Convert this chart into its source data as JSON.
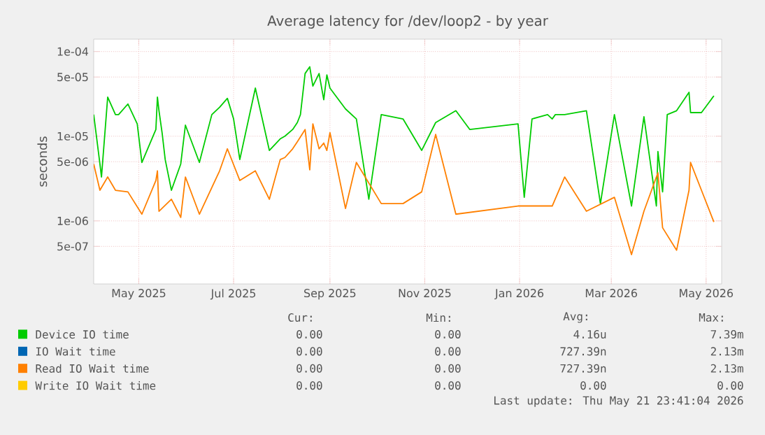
{
  "chart_data": {
    "type": "line",
    "title": "Average latency for /dev/loop2 - by year",
    "ylabel": "seconds",
    "x": [
      "2025-04-02",
      "2025-04-06",
      "2025-04-07",
      "2025-04-11",
      "2025-04-16",
      "2025-04-18",
      "2025-04-24",
      "2025-04-30",
      "2025-05-03",
      "2025-05-12",
      "2025-05-13",
      "2025-05-14",
      "2025-05-16",
      "2025-05-18",
      "2025-05-22",
      "2025-05-28",
      "2025-05-31",
      "2025-06-09",
      "2025-06-17",
      "2025-06-22",
      "2025-06-27",
      "2025-07-01",
      "2025-07-05",
      "2025-07-15",
      "2025-07-24",
      "2025-07-31",
      "2025-08-03",
      "2025-08-08",
      "2025-08-11",
      "2025-08-13",
      "2025-08-16",
      "2025-08-19",
      "2025-08-21",
      "2025-08-25",
      "2025-08-28",
      "2025-08-30",
      "2025-09-01",
      "2025-09-11",
      "2025-09-18",
      "2025-09-26",
      "2025-10-04",
      "2025-10-18",
      "2025-10-30",
      "2025-11-08",
      "2025-11-21",
      "2025-11-30",
      "2025-12-31",
      "2026-01-04",
      "2026-01-09",
      "2026-01-19",
      "2026-01-22",
      "2026-01-24",
      "2026-01-30",
      "2026-02-13",
      "2026-02-22",
      "2026-03-03",
      "2026-03-14",
      "2026-03-22",
      "2026-03-30",
      "2026-03-31",
      "2026-04-03",
      "2026-04-06",
      "2026-04-12",
      "2026-04-20",
      "2026-04-21",
      "2026-04-28",
      "2026-05-06"
    ],
    "series": [
      {
        "name": "Device IO time",
        "color": "#00cc00",
        "values": [
          1.8e-05,
          4.7e-06,
          3.3e-06,
          2.9e-05,
          1.8e-05,
          1.8e-05,
          2.4e-05,
          1.4e-05,
          4.9e-06,
          1.2e-05,
          2.9e-05,
          2e-05,
          1.1e-05,
          5.3e-06,
          2.3e-06,
          4.7e-06,
          1.35e-05,
          4.9e-06,
          1.8e-05,
          2.2e-05,
          2.8e-05,
          1.6e-05,
          5.3e-06,
          3.7e-05,
          6.8e-06,
          9.3e-06,
          1e-05,
          1.2e-05,
          1.45e-05,
          1.8e-05,
          5.5e-05,
          6.6e-05,
          3.9e-05,
          5.5e-05,
          2.7e-05,
          5.3e-05,
          3.7e-05,
          2.1e-05,
          1.6e-05,
          1.8e-06,
          1.8e-05,
          1.6e-05,
          6.8e-06,
          1.45e-05,
          2e-05,
          1.2e-05,
          1.4e-05,
          1.9e-06,
          1.6e-05,
          1.8e-05,
          1.6e-05,
          1.8e-05,
          1.8e-05,
          2e-05,
          1.6e-06,
          1.8e-05,
          1.5e-06,
          1.7e-05,
          1.5e-06,
          6.6e-06,
          2.2e-06,
          1.8e-05,
          2e-05,
          3.3e-05,
          1.9e-05,
          1.9e-05,
          3e-05
        ]
      },
      {
        "name": "IO Wait time",
        "color": "#0066b3",
        "values": [
          null,
          null,
          null,
          null,
          null,
          null,
          null,
          null,
          null,
          null,
          null,
          null,
          null,
          null,
          null,
          null,
          null,
          null,
          null,
          null,
          null,
          null,
          null,
          null,
          null,
          null,
          null,
          null,
          null,
          null,
          null,
          null,
          null,
          null,
          null,
          null,
          null,
          null,
          null,
          null,
          null,
          null,
          null,
          null,
          null,
          null,
          null,
          null,
          null,
          null,
          null,
          null,
          null,
          null,
          null,
          null,
          null,
          null,
          null,
          null,
          null,
          null,
          null,
          null,
          null,
          null,
          null
        ]
      },
      {
        "name": "Read IO Wait time",
        "color": "#ff8000",
        "values": [
          4.7e-06,
          2.3e-06,
          null,
          3.3e-06,
          2.3e-06,
          null,
          2.2e-06,
          null,
          1.2e-06,
          3e-06,
          3.9e-06,
          1.3e-06,
          null,
          null,
          1.8e-06,
          1.1e-06,
          3.3e-06,
          1.2e-06,
          null,
          3.9e-06,
          7.1e-06,
          null,
          3e-06,
          3.9e-06,
          1.8e-06,
          5.3e-06,
          5.6e-06,
          7.1e-06,
          8.6e-06,
          null,
          1.2e-05,
          4e-06,
          1.4e-05,
          7.1e-06,
          8.3e-06,
          6.8e-06,
          1.1e-05,
          1.4e-06,
          4.9e-06,
          null,
          1.6e-06,
          1.6e-06,
          2.2e-06,
          1.05e-05,
          1.2e-06,
          null,
          1.5e-06,
          null,
          1.5e-06,
          null,
          1.5e-06,
          null,
          3.3e-06,
          1.3e-06,
          null,
          1.9e-06,
          4e-07,
          1.3e-06,
          null,
          3.7e-06,
          8.3e-07,
          null,
          4.5e-07,
          2.3e-06,
          4.9e-06,
          2.3e-06,
          9.7e-07
        ]
      },
      {
        "name": "Write IO Wait time",
        "color": "#ffcc00",
        "values": [
          null,
          null,
          null,
          null,
          null,
          null,
          null,
          null,
          null,
          null,
          null,
          null,
          null,
          null,
          null,
          null,
          null,
          null,
          null,
          null,
          null,
          null,
          null,
          null,
          null,
          null,
          null,
          null,
          null,
          null,
          null,
          null,
          null,
          null,
          null,
          null,
          null,
          null,
          null,
          null,
          null,
          null,
          null,
          null,
          null,
          null,
          null,
          null,
          null,
          null,
          null,
          null,
          null,
          null,
          null,
          null,
          null,
          null,
          null,
          null,
          null,
          null,
          null,
          null,
          null,
          null,
          null
        ]
      }
    ],
    "xlim": [
      "2025-04-02",
      "2026-05-11"
    ],
    "xticks": [
      {
        "value": "2025-05-01",
        "label": "May 2025"
      },
      {
        "value": "2025-07-01",
        "label": "Jul 2025"
      },
      {
        "value": "2025-09-01",
        "label": "Sep 2025"
      },
      {
        "value": "2025-11-01",
        "label": "Nov 2025"
      },
      {
        "value": "2026-01-01",
        "label": "Jan 2026"
      },
      {
        "value": "2026-03-01",
        "label": "Mar 2026"
      },
      {
        "value": "2026-05-01",
        "label": "May 2026"
      }
    ],
    "ylim": [
      1.8e-07,
      0.00014
    ],
    "yticks": [
      {
        "value": 5e-07,
        "label": "5e-07"
      },
      {
        "value": 1e-06,
        "label": "1e-06"
      },
      {
        "value": 5e-06,
        "label": "5e-06"
      },
      {
        "value": 1e-05,
        "label": "1e-05"
      },
      {
        "value": 5e-05,
        "label": "5e-05"
      },
      {
        "value": 0.0001,
        "label": "1e-04"
      }
    ],
    "log": "y",
    "grid": true,
    "legend": "bottom",
    "annotations": [
      "Cur:",
      "Min:",
      "Avg:",
      "Max:",
      "0.00",
      "0.00",
      "4.16u",
      "7.39m",
      "0.00",
      "0.00",
      "727.39n",
      "2.13m",
      "0.00",
      "0.00",
      "727.39n",
      "2.13m",
      "0.00",
      "0.00",
      "0.00",
      "0.00",
      "Last update: Thu May 21 23:41:04 2026"
    ]
  }
}
